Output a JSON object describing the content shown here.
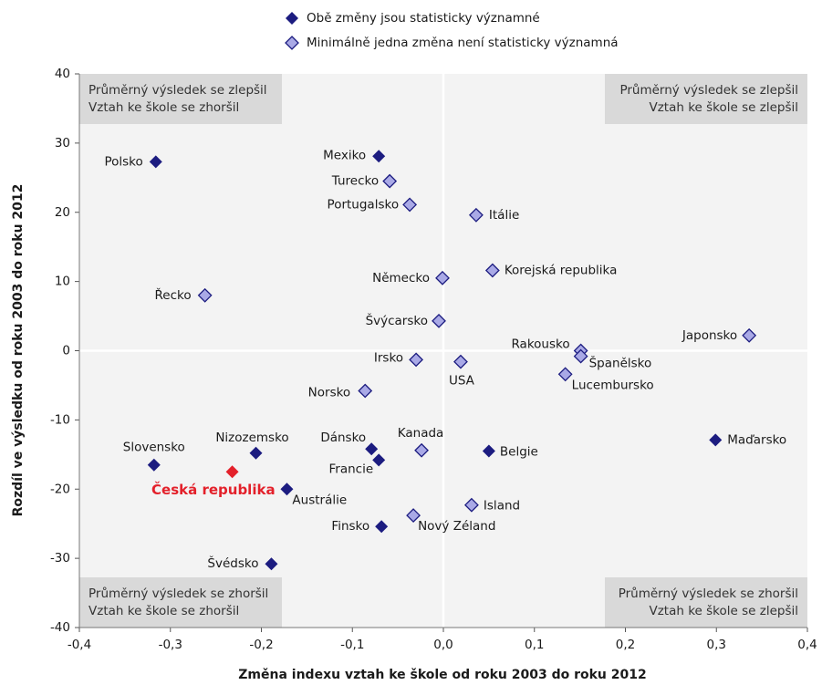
{
  "chart_data": {
    "type": "scatter",
    "xlabel": "Změna indexu vztah ke škole od roku 2003 do roku 2012",
    "ylabel": "Rozdíl ve výsledku od roku 2003 do roku 2012",
    "xlim": [
      -0.4,
      0.4
    ],
    "xticks": [
      {
        "value": -0.4,
        "label": "-0,4"
      },
      {
        "value": -0.3,
        "label": "-0,3"
      },
      {
        "value": -0.2,
        "label": "-0,2"
      },
      {
        "value": -0.1,
        "label": "-0,1"
      },
      {
        "value": 0,
        "label": "0,0"
      },
      {
        "value": 0.1,
        "label": "0,1"
      },
      {
        "value": 0.2,
        "label": "0,2"
      },
      {
        "value": 0.3,
        "label": "0,3"
      },
      {
        "value": 0.4,
        "label": "0,4"
      }
    ],
    "ylim": [
      -40,
      40
    ],
    "yticks": [
      40,
      30,
      20,
      10,
      0,
      -10,
      -20,
      -30,
      -40
    ],
    "quadrant_labels": [
      {
        "lines": [
          "Průměrný výsledek se zlepšil",
          "Vztah ke škole se zhoršil"
        ]
      },
      {
        "lines": [
          "Průměrný výsledek se zlepšil",
          "Vztah ke škole se zlepšil"
        ]
      },
      {
        "lines": [
          "Průměrný výsledek se zhoršil",
          "Vztah ke škole se zhoršil"
        ]
      },
      {
        "lines": [
          "Průměrný výsledek se zhoršil",
          "Vztah ke škole se zlepšil"
        ]
      }
    ],
    "series": [
      {
        "name": "Obě změny jsou statisticky významné",
        "color": "#1c1c80",
        "filled": true,
        "labels": [
          "Polsko",
          "Mexiko",
          "Maďarsko",
          "Dánsko",
          "Francie",
          "Belgie",
          "Nizozemsko",
          "Slovensko",
          "Austrálie",
          "Finsko",
          "Švédsko"
        ],
        "x": [
          -0.316,
          -0.071,
          0.299,
          -0.079,
          -0.071,
          0.05,
          -0.206,
          -0.318,
          -0.172,
          -0.068,
          -0.189
        ],
        "values": [
          27.3,
          28.1,
          -12.9,
          -14.2,
          -15.8,
          -14.5,
          -14.8,
          -16.5,
          -20.0,
          -25.4,
          -30.8
        ]
      },
      {
        "name": "Minimálně jedna změna není statisticky významná",
        "color": "#a9a9e6",
        "filled": false,
        "labels": [
          "Turecko",
          "Portugalsko",
          "Itálie",
          "Korejská republika",
          "Německo",
          "Řecko",
          "Švýcarsko",
          "Japonsko",
          "Rakousko",
          "Španělsko",
          "Irsko",
          "USA",
          "Lucembursko",
          "Norsko",
          "Kanada",
          "Island",
          "Nový Zéland"
        ],
        "x": [
          -0.059,
          -0.037,
          0.036,
          0.054,
          -0.001,
          -0.262,
          -0.005,
          0.336,
          0.151,
          0.151,
          -0.03,
          0.019,
          0.134,
          -0.086,
          -0.024,
          0.031,
          -0.033
        ],
        "values": [
          24.5,
          21.1,
          19.6,
          11.6,
          10.5,
          8.0,
          4.3,
          2.2,
          0.0,
          -0.8,
          -1.3,
          -1.6,
          -3.4,
          -5.8,
          -14.4,
          -22.3,
          -23.8
        ]
      }
    ],
    "highlight": {
      "label": "Česká republika",
      "x": -0.232,
      "y": -17.5,
      "color": "#e3202a"
    }
  }
}
